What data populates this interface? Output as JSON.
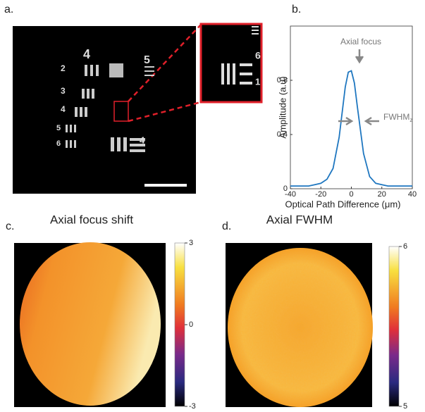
{
  "chart_data": [
    {
      "type": "image",
      "panel_label": "a.",
      "target_labels": [
        "4",
        "5",
        "2",
        "3",
        "4",
        "5",
        "6",
        "6",
        "1",
        "4"
      ]
    },
    {
      "type": "line",
      "panel_label": "b.",
      "x": [
        -40,
        -36,
        -32,
        -28,
        -24,
        -20,
        -16,
        -12,
        -8,
        -4,
        -2,
        0,
        2,
        4,
        8,
        12,
        16,
        20,
        24,
        28,
        32,
        36,
        40
      ],
      "series": [
        {
          "color": "#1f77c0",
          "values": [
            0.02,
            0.02,
            0.02,
            0.02,
            0.03,
            0.04,
            0.07,
            0.15,
            0.38,
            0.75,
            0.86,
            0.87,
            0.78,
            0.6,
            0.26,
            0.09,
            0.04,
            0.03,
            0.02,
            0.02,
            0.02,
            0.02,
            0.02
          ]
        }
      ],
      "xlim": [
        -40,
        40
      ],
      "xticks": [
        -40,
        -20,
        0,
        20,
        40
      ],
      "ylim": [
        0,
        1.2
      ],
      "yticks": [
        0,
        0.4,
        0.8
      ],
      "xlabel": "Optical Path Difference (μm)",
      "ylabel": "Amplitude (a.u)",
      "annotations": [
        {
          "text": "Axial focus"
        },
        {
          "text": "FWHM",
          "subscript": "z"
        }
      ]
    },
    {
      "type": "heatmap",
      "panel_label": "c.",
      "title": "Axial focus shift",
      "clim": [
        -3,
        3
      ],
      "cticks": [
        -3,
        0,
        3
      ]
    },
    {
      "type": "heatmap",
      "panel_label": "d.",
      "title": "Axial FWHM",
      "clim": [
        5,
        6
      ],
      "cticks": [
        5,
        6
      ]
    }
  ]
}
